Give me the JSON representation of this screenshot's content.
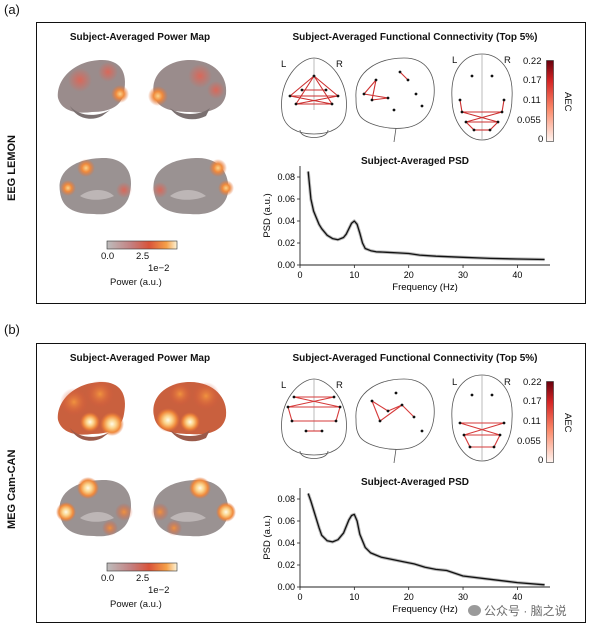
{
  "panels": [
    {
      "letter": "(a)",
      "side_label": "EEG LEMON",
      "power_map_title": "Subject-Averaged Power Map",
      "fc_title": "Subject-Averaged Functional Connectivity (Top 5%)",
      "psd_title": "Subject-Averaged PSD",
      "power_cbar": {
        "ticks": [
          "0.0",
          "2.5"
        ],
        "exponent": "1e−2",
        "label": "Power (a.u.)"
      },
      "aec_cbar": {
        "ticks": [
          "0.22",
          "0.17",
          "0.11",
          "0.055",
          "0"
        ],
        "label": "AEC"
      },
      "glass_labels": [
        "L",
        "R",
        "L",
        "R"
      ]
    },
    {
      "letter": "(b)",
      "side_label": "MEG Cam-CAN",
      "power_map_title": "Subject-Averaged Power Map",
      "fc_title": "Subject-Averaged Functional Connectivity (Top 5%)",
      "psd_title": "Subject-Averaged PSD",
      "power_cbar": {
        "ticks": [
          "0.0",
          "2.5"
        ],
        "exponent": "1e−2",
        "label": "Power (a.u.)"
      },
      "aec_cbar": {
        "ticks": [
          "0.22",
          "0.17",
          "0.11",
          "0.055",
          "0"
        ],
        "label": "AEC"
      },
      "glass_labels": [
        "L",
        "R",
        "L",
        "R"
      ]
    }
  ],
  "chart_data": [
    {
      "type": "line",
      "title": "Subject-Averaged PSD",
      "xlabel": "Frequency (Hz)",
      "ylabel": "PSD (a.u.)",
      "xlim": [
        0,
        46
      ],
      "ylim": [
        0,
        0.09
      ],
      "xticks": [
        0,
        10,
        20,
        30,
        40
      ],
      "yticks": [
        0.0,
        0.02,
        0.04,
        0.06,
        0.08
      ],
      "ytick_labels": [
        "0.00",
        "0.02",
        "0.04",
        "0.06",
        "0.08"
      ],
      "series": [
        {
          "name": "EEG LEMON",
          "x": [
            1.5,
            2,
            2.5,
            3,
            3.5,
            4,
            5,
            6,
            7,
            8,
            8.5,
            9,
            9.5,
            10,
            10.5,
            11,
            11.5,
            12,
            13,
            14,
            16,
            18,
            20,
            22,
            25,
            30,
            35,
            40,
            45
          ],
          "y": [
            0.085,
            0.06,
            0.049,
            0.043,
            0.037,
            0.033,
            0.027,
            0.024,
            0.023,
            0.025,
            0.028,
            0.033,
            0.038,
            0.04,
            0.037,
            0.029,
            0.02,
            0.015,
            0.013,
            0.012,
            0.0115,
            0.011,
            0.0105,
            0.009,
            0.008,
            0.007,
            0.006,
            0.0055,
            0.005
          ]
        }
      ]
    },
    {
      "type": "line",
      "title": "Subject-Averaged PSD",
      "xlabel": "Frequency (Hz)",
      "ylabel": "PSD (a.u.)",
      "xlim": [
        0,
        46
      ],
      "ylim": [
        0,
        0.09
      ],
      "xticks": [
        0,
        10,
        20,
        30,
        40
      ],
      "yticks": [
        0.0,
        0.02,
        0.04,
        0.06,
        0.08
      ],
      "ytick_labels": [
        "0.00",
        "0.02",
        "0.04",
        "0.06",
        "0.08"
      ],
      "series": [
        {
          "name": "MEG Cam-CAN",
          "x": [
            1.5,
            2,
            2.5,
            3,
            3.5,
            4,
            5,
            6,
            7,
            8,
            8.5,
            9,
            9.5,
            10,
            10.5,
            11,
            12,
            13,
            14,
            15,
            17,
            19,
            21,
            23,
            25,
            27,
            30,
            35,
            40,
            45
          ],
          "y": [
            0.085,
            0.078,
            0.07,
            0.062,
            0.054,
            0.047,
            0.042,
            0.041,
            0.043,
            0.049,
            0.055,
            0.061,
            0.065,
            0.066,
            0.06,
            0.048,
            0.036,
            0.031,
            0.029,
            0.027,
            0.025,
            0.023,
            0.021,
            0.018,
            0.016,
            0.015,
            0.01,
            0.007,
            0.004,
            0.002
          ]
        }
      ]
    }
  ],
  "watermark": {
    "text": "公众号 · 脑之说"
  }
}
